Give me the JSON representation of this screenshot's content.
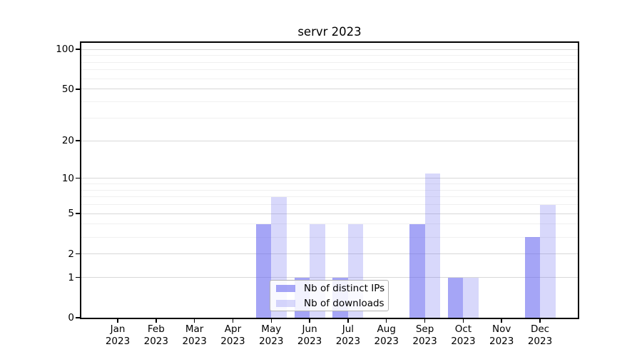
{
  "title": "servr 2023",
  "chart_data": {
    "type": "bar",
    "title": "servr 2023",
    "categories": [
      "Jan 2023",
      "Feb 2023",
      "Mar 2023",
      "Apr 2023",
      "May 2023",
      "Jun 2023",
      "Jul 2023",
      "Aug 2023",
      "Sep 2023",
      "Oct 2023",
      "Nov 2023",
      "Dec 2023"
    ],
    "series": [
      {
        "name": "Nb of distinct IPs",
        "color": "rgba(100,100,240,0.58)",
        "values": [
          0,
          0,
          0,
          0,
          4,
          1,
          1,
          0,
          4,
          1,
          0,
          3
        ]
      },
      {
        "name": "Nb of downloads",
        "color": "rgba(100,100,240,0.25)",
        "values": [
          0,
          0,
          0,
          0,
          7,
          4,
          4,
          0,
          11,
          1,
          0,
          6
        ]
      }
    ],
    "xlabel": "",
    "ylabel": "",
    "yscale": "log1p",
    "ylim": [
      0,
      112
    ],
    "yticks": [
      0,
      1,
      2,
      5,
      10,
      20,
      50,
      100
    ],
    "yticks_minor": [
      3,
      4,
      6,
      7,
      8,
      9,
      30,
      40,
      60,
      70,
      80,
      90
    ],
    "grid": "horizontal",
    "legend_position": "inside lower center"
  },
  "legend": {
    "items": [
      {
        "label": "Nb of distinct IPs"
      },
      {
        "label": "Nb of downloads"
      }
    ]
  },
  "colors": {
    "background": "#ffffff",
    "axis": "#000000",
    "grid_major": "#d8d8d8",
    "grid_minor": "#f0f0f0",
    "bar_distinct_ips": "rgba(100,100,240,0.58)",
    "bar_downloads": "rgba(100,100,240,0.25)",
    "legend_border": "#b3b3b3",
    "legend_background": "rgba(255,255,255,0.85)"
  }
}
